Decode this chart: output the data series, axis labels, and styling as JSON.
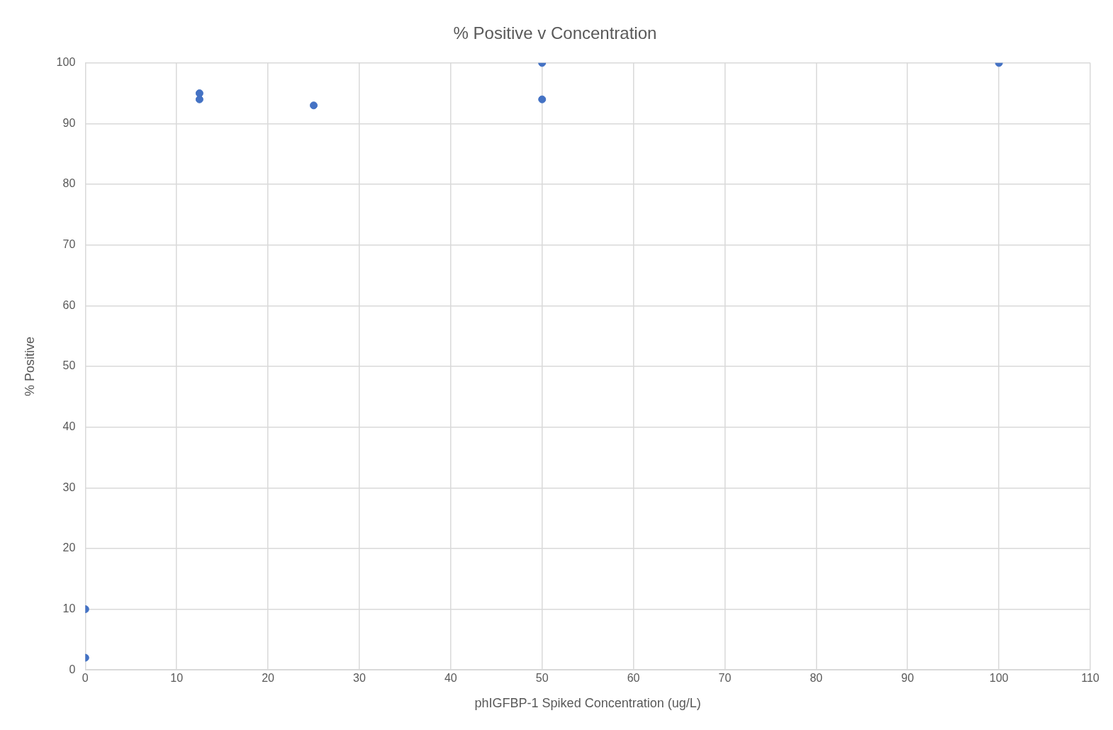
{
  "chart_data": {
    "type": "scatter",
    "title": "% Positive v Concentration",
    "xlabel": "phIGFBP-1 Spiked Concentration (ug/L)",
    "ylabel": "% Positive",
    "x": [
      0,
      0,
      12.5,
      12.5,
      25,
      50,
      50,
      100
    ],
    "values": [
      10,
      2,
      95,
      94,
      93,
      100,
      94,
      100
    ],
    "color": "#4472c4",
    "xlim": [
      0,
      110
    ],
    "xticks": [
      0,
      10,
      20,
      30,
      40,
      50,
      60,
      70,
      80,
      90,
      100,
      110
    ],
    "ylim": [
      0,
      100
    ],
    "yticks": [
      0,
      10,
      20,
      30,
      40,
      50,
      60,
      70,
      80,
      90,
      100
    ],
    "grid": true,
    "legend": false,
    "marker": "circle"
  }
}
